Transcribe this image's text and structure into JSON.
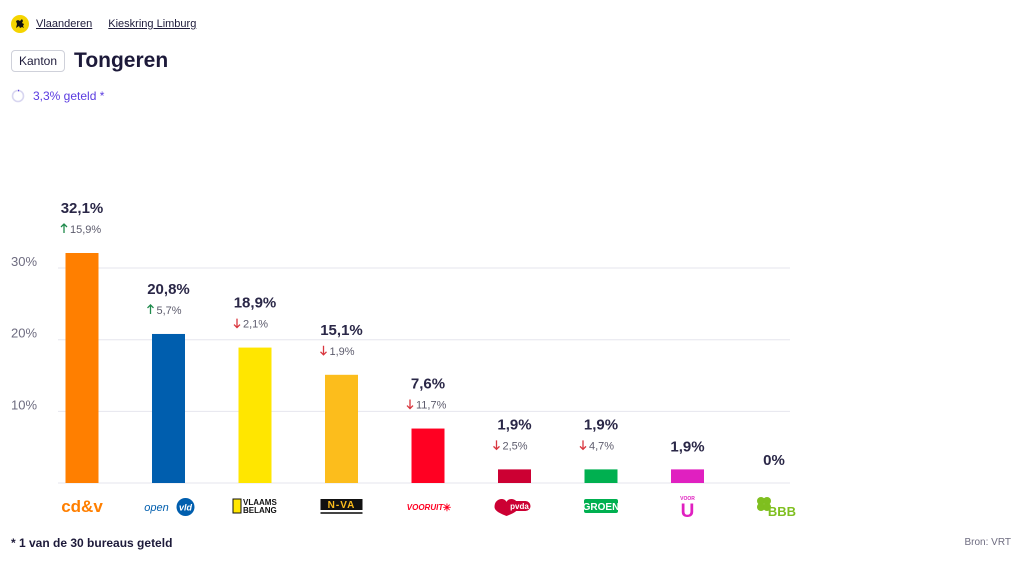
{
  "breadcrumb": {
    "items": [
      "Vlaanderen",
      "Kieskring Limburg"
    ]
  },
  "header": {
    "badge": "Kanton",
    "title": "Tongeren"
  },
  "status": {
    "counted_text": "3,3% geteld *"
  },
  "footer": {
    "footnote": "* 1 van de 30 bureaus geteld",
    "source": "Bron: VRT"
  },
  "chart_data": {
    "type": "bar",
    "ylim": [
      0,
      32.1
    ],
    "yticks": [
      10,
      20,
      30
    ],
    "ytick_labels": [
      "10%",
      "20%",
      "30%"
    ],
    "grid": true,
    "series": [
      {
        "values": [
          32.1,
          20.8,
          18.9,
          15.1,
          7.6,
          1.9,
          1.9,
          1.9,
          0
        ],
        "value_labels": [
          "32,1%",
          "20,8%",
          "18,9%",
          "15,1%",
          "7,6%",
          "1,9%",
          "1,9%",
          "1,9%",
          "0%"
        ],
        "delta_labels": [
          "15,9%",
          "5,7%",
          "2,1%",
          "1,9%",
          "11,7%",
          "2,5%",
          "4,7%",
          "",
          ""
        ],
        "delta_direction": [
          "up",
          "up",
          "down",
          "down",
          "down",
          "down",
          "down",
          "",
          ""
        ]
      }
    ],
    "parties": [
      {
        "label": "cd&v",
        "color": "#ff7f00",
        "logo": "cdv-logo"
      },
      {
        "label": "open vld",
        "color": "#005eae",
        "logo": "openvld-logo"
      },
      {
        "label": "VLAAMS BELANG",
        "color": "#ffe600",
        "logo": "vlaamsbelang-logo"
      },
      {
        "label": "N-VA",
        "color": "#fcbd1c",
        "logo": "nva-logo"
      },
      {
        "label": "VOORUIT",
        "color": "#ff0022",
        "logo": "vooruit-logo"
      },
      {
        "label": "pvda",
        "color": "#cc0033",
        "logo": "pvda-logo"
      },
      {
        "label": "GROEN",
        "color": "#00b050",
        "logo": "groen-logo"
      },
      {
        "label": "VOOR U",
        "color": "#e020c0",
        "logo": "vooru-logo"
      },
      {
        "label": "BBB",
        "color": "#7fbf1f",
        "logo": "bbb-logo"
      }
    ],
    "colors": {
      "up": "#1f8a4c",
      "down": "#d9363e",
      "grid": "#e6e6ee"
    }
  }
}
